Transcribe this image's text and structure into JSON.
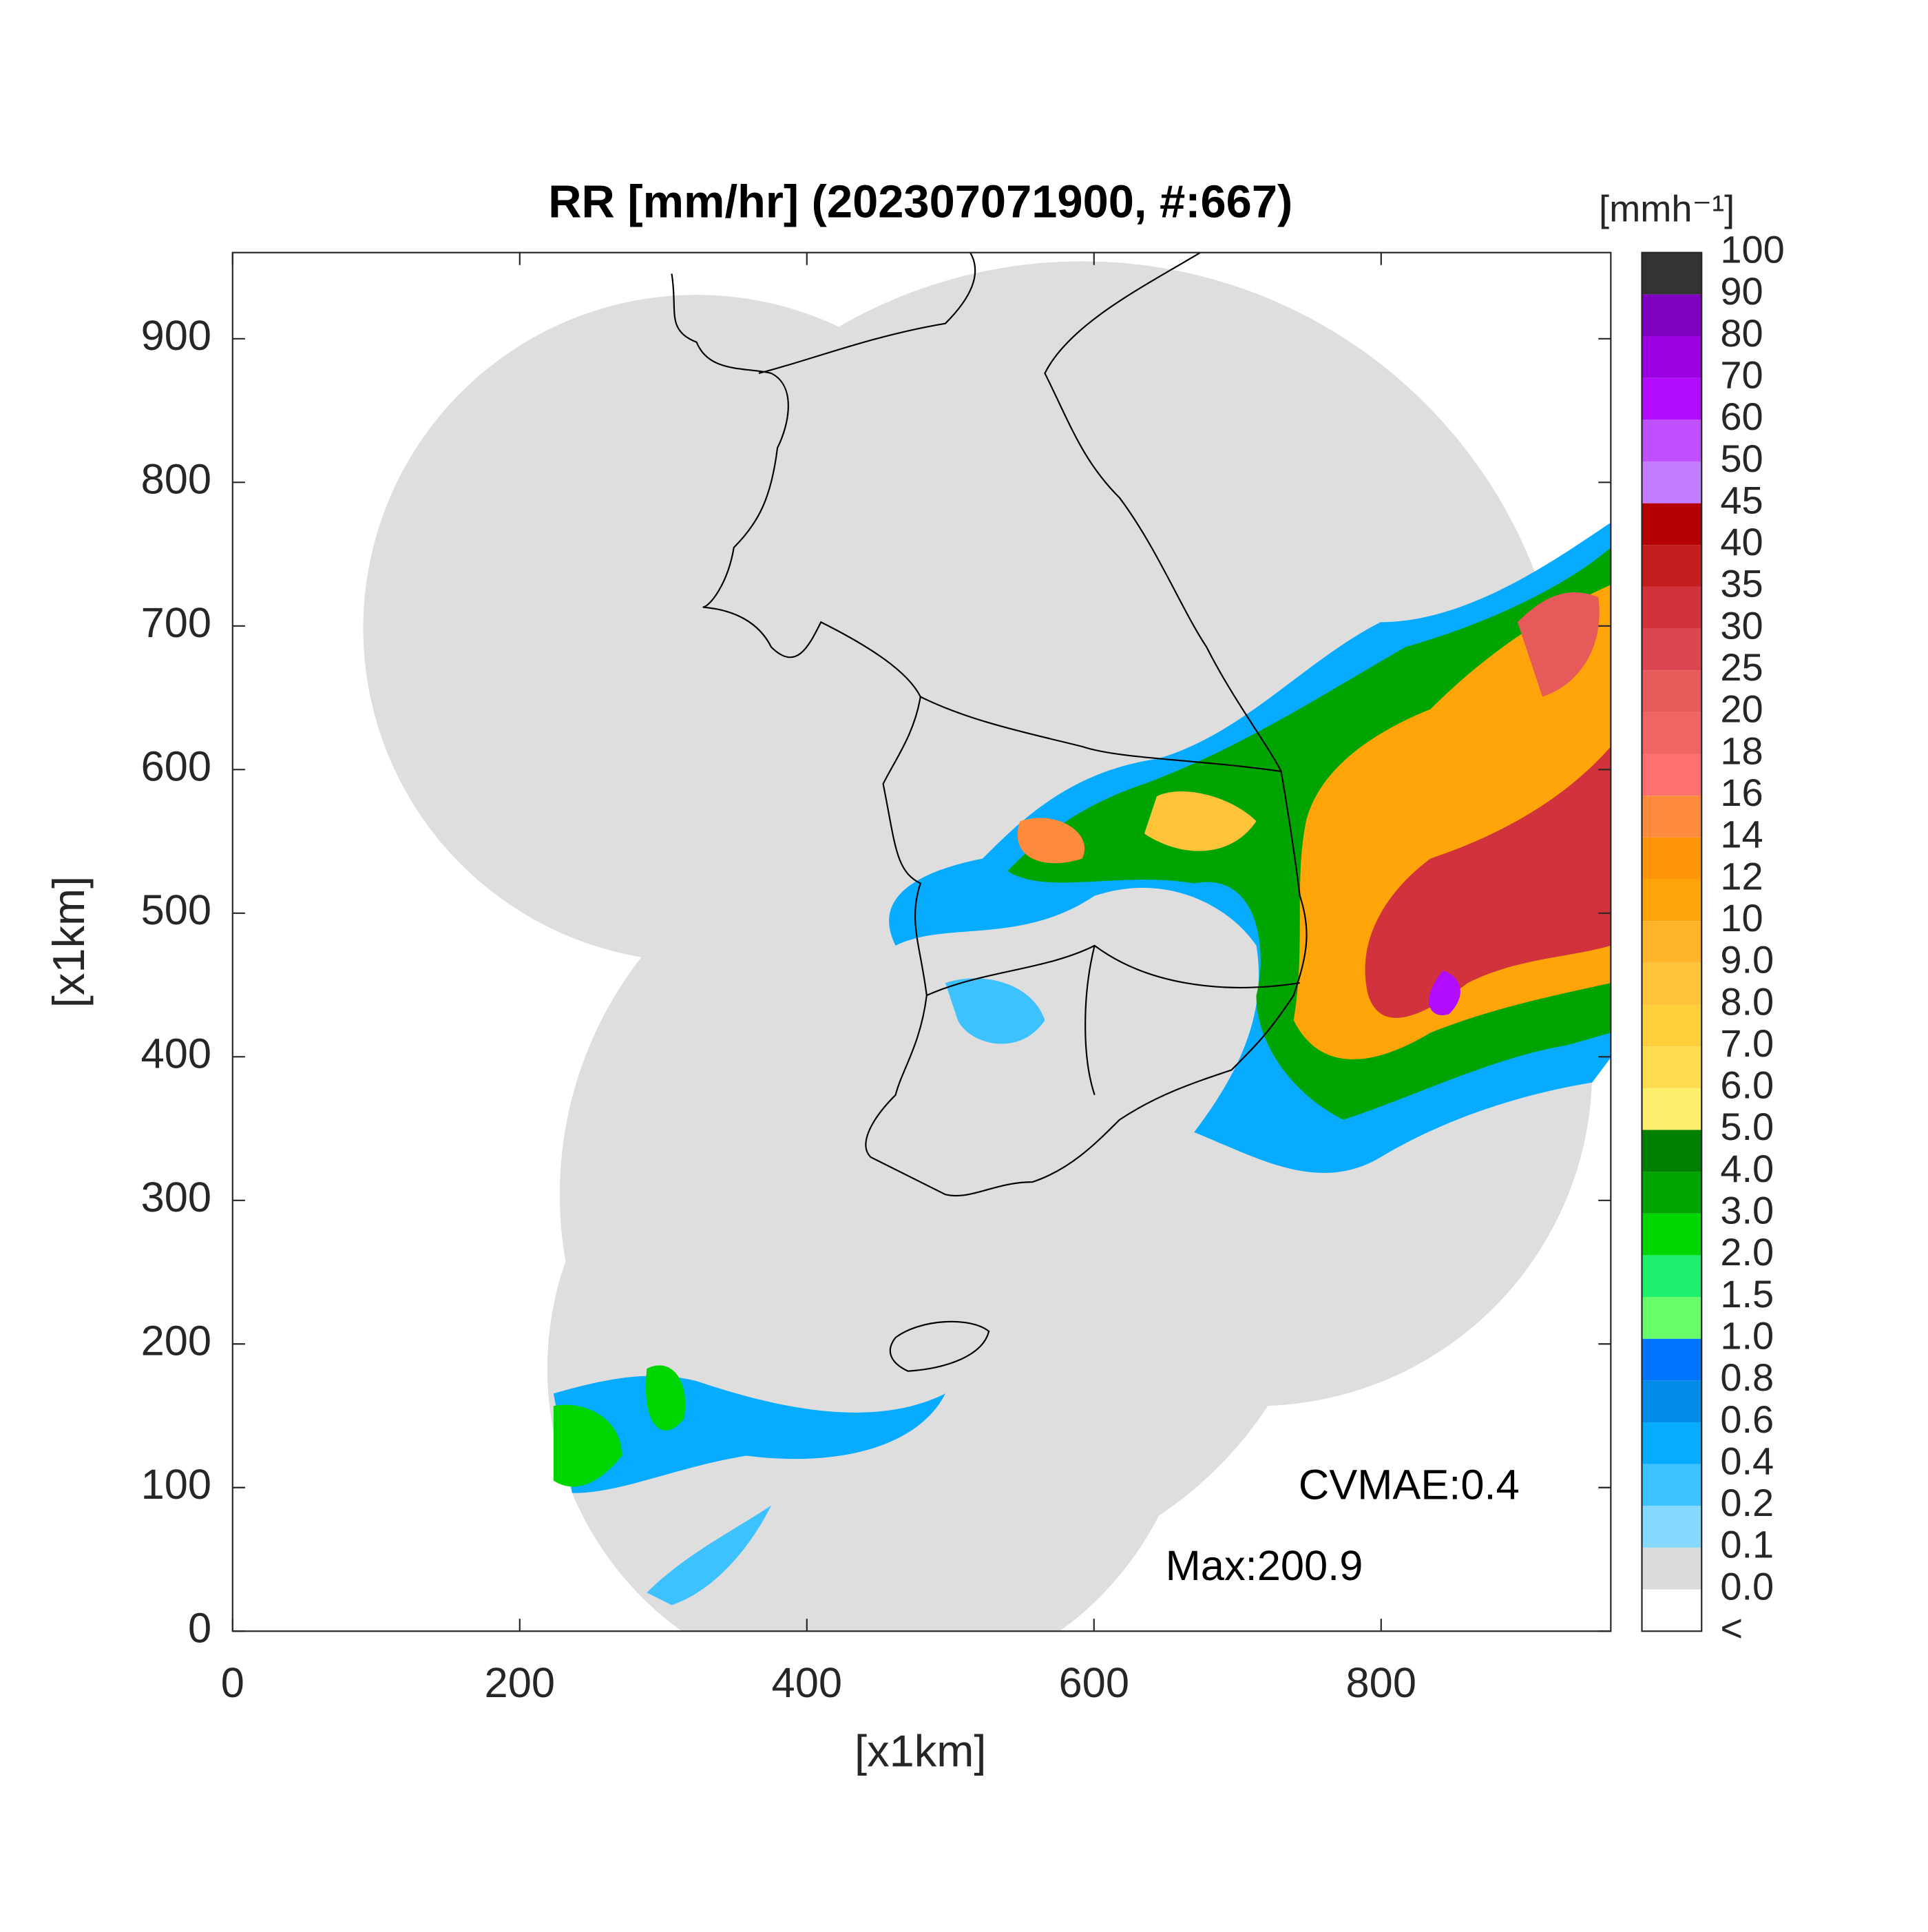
{
  "chart_data": {
    "type": "radar-map",
    "title": "RR [mm/hr] (202307071900, #:667)",
    "xlabel": "[x1km]",
    "ylabel": "[x1km]",
    "xlim": [
      0,
      960
    ],
    "ylim": [
      0,
      960
    ],
    "xticks": [
      0,
      200,
      400,
      600,
      800
    ],
    "yticks": [
      0,
      100,
      200,
      300,
      400,
      500,
      600,
      700,
      800,
      900
    ],
    "annotations": [
      "CVMAE:0.4",
      "Max:200.9"
    ],
    "colorbar": {
      "unit": "[mmh⁻¹]",
      "labels": [
        "<",
        "0.0",
        "0.1",
        "0.2",
        "0.4",
        "0.6",
        "0.8",
        "1.0",
        "1.5",
        "2.0",
        "3.0",
        "4.0",
        "5.0",
        "6.0",
        "7.0",
        "8.0",
        "9.0",
        "10",
        "12",
        "14",
        "16",
        "18",
        "20",
        "25",
        "30",
        "35",
        "40",
        "45",
        "50",
        "60",
        "70",
        "80",
        "90",
        "100"
      ],
      "colors": [
        "#ffffff",
        "#dcdcdc",
        "#87daff",
        "#3ec1ff",
        "#07abff",
        "#008ce6",
        "#0073ff",
        "#69fc69",
        "#1ef06e",
        "#00d500",
        "#00a400",
        "#008000",
        "#ffee6b",
        "#ffdc50",
        "#ffd03c",
        "#ffc43a",
        "#ffb42a",
        "#ffa50a",
        "#ff960a",
        "#ff8c3c",
        "#ff7070",
        "#f06464",
        "#e65a5a",
        "#dc4650",
        "#d2323c",
        "#c41e1e",
        "#b40000",
        "#c47cff",
        "#c050ff",
        "#b10cff",
        "#9a00e0",
        "#8000c0",
        "#333333"
      ]
    }
  }
}
